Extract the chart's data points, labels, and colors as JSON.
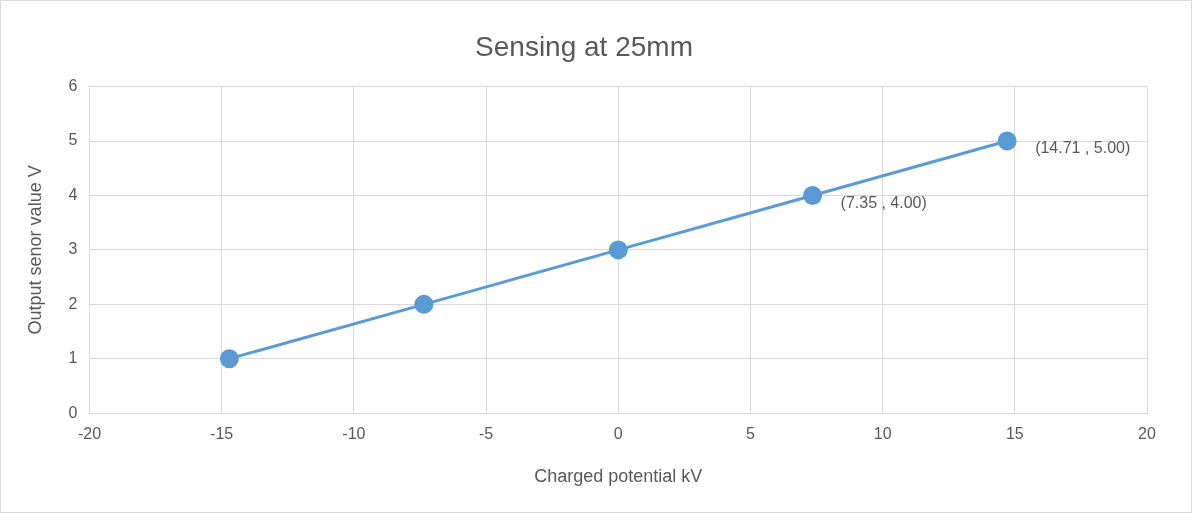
{
  "chart_data": {
    "type": "line",
    "title": "Sensing at 25mm",
    "xlabel": "Charged potential kV",
    "ylabel": "Output senor value V",
    "x": [
      -14.71,
      -7.35,
      0,
      7.35,
      14.71
    ],
    "series": [
      {
        "color": "#5b9bd5",
        "values": [
          1,
          2,
          3,
          4,
          5
        ]
      }
    ],
    "xlim": [
      -20,
      20
    ],
    "xticks": [
      -20,
      -15,
      -10,
      -5,
      0,
      5,
      10,
      15,
      20
    ],
    "ylim": [
      0,
      6
    ],
    "yticks": [
      0,
      1,
      2,
      3,
      4,
      5,
      6
    ],
    "grid": true,
    "legend": false,
    "marker": "circle",
    "line_style": "solid",
    "annotations": [
      {
        "text": "(7.35 , 4.00)",
        "x": 7.35,
        "y": 4
      },
      {
        "text": "(14.71 , 5.00)",
        "x": 14.71,
        "y": 5
      }
    ]
  }
}
